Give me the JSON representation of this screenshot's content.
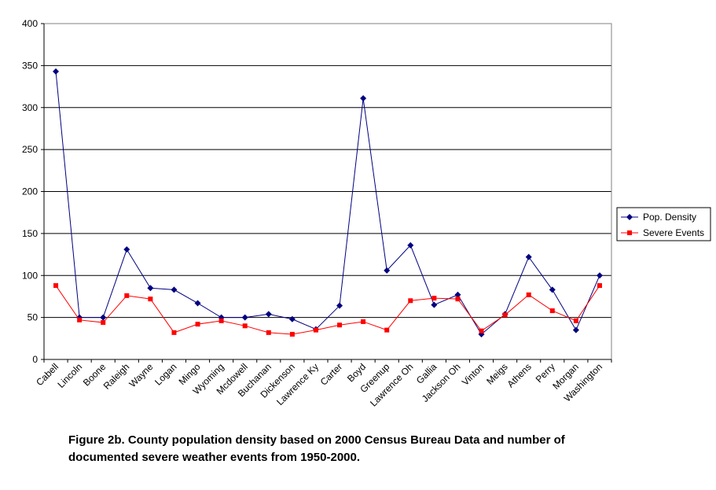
{
  "chart_data": {
    "type": "line",
    "title": "",
    "xlabel": "",
    "ylabel": "",
    "ylim": [
      0,
      400
    ],
    "yticks": [
      0,
      50,
      100,
      150,
      200,
      250,
      300,
      350,
      400
    ],
    "grid": true,
    "legend_position": "right",
    "categories": [
      "Cabell",
      "Lincoln",
      "Boone",
      "Raleigh",
      "Wayne",
      "Logan",
      "Mingo",
      "Wyoming",
      "Mcdowell",
      "Buchanan",
      "Dickenson",
      "Lawrence Ky",
      "Carter",
      "Boyd",
      "Greenup",
      "Lawrence Oh",
      "Gallia",
      "Jackson Oh",
      "Vinton",
      "Meigs",
      "Athens",
      "Perry",
      "Morgan",
      "Washington"
    ],
    "series": [
      {
        "name": "Pop. Density",
        "color": "#000080",
        "marker": "diamond",
        "values": [
          343,
          50,
          50,
          131,
          85,
          83,
          67,
          50,
          50,
          54,
          48,
          36,
          64,
          311,
          106,
          136,
          65,
          77,
          30,
          54,
          122,
          83,
          35,
          100
        ]
      },
      {
        "name": "Severe Events",
        "color": "#ff0000",
        "marker": "square",
        "values": [
          88,
          47,
          44,
          76,
          72,
          32,
          42,
          46,
          40,
          32,
          30,
          35,
          41,
          45,
          35,
          70,
          73,
          72,
          34,
          53,
          77,
          58,
          46,
          88
        ]
      }
    ]
  },
  "caption": {
    "line1": "Figure 2b.  County population density based on 2000 Census Bureau Data and number of",
    "line2": "documented severe weather events from 1950-2000."
  }
}
